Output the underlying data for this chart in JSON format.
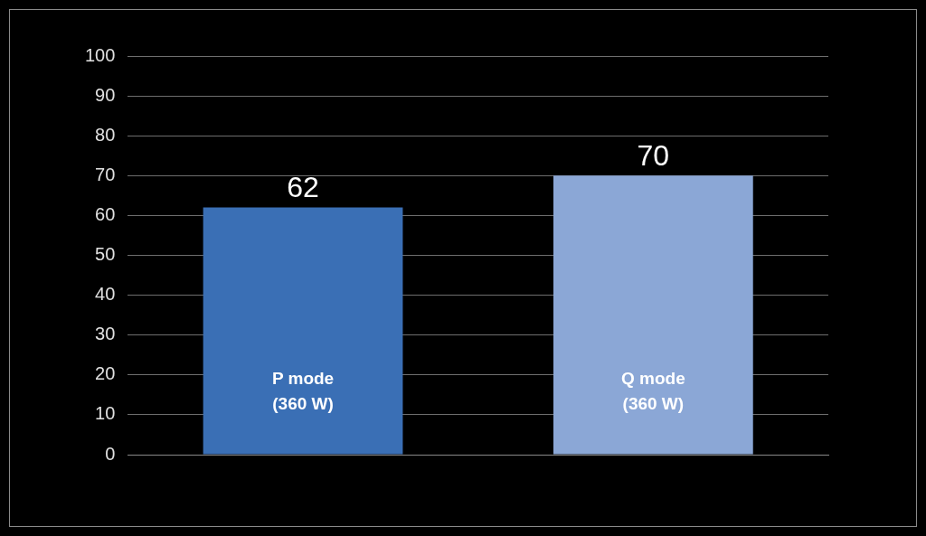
{
  "chart_data": {
    "type": "bar",
    "categories": [
      "P mode\n(360 W)",
      "Q mode\n(360 W)"
    ],
    "values": [
      62,
      70
    ],
    "colors": [
      "#3a6fb5",
      "#8ba7d6"
    ],
    "ylim": [
      0,
      100
    ],
    "yticks": [
      0,
      10,
      20,
      30,
      40,
      50,
      60,
      70,
      80,
      90,
      100
    ],
    "grid": "y",
    "data_labels": true,
    "tick_labels": "y",
    "legend": false
  }
}
